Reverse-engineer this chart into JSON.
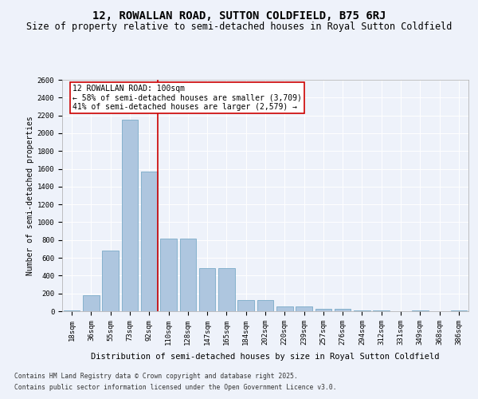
{
  "title": "12, ROWALLAN ROAD, SUTTON COLDFIELD, B75 6RJ",
  "subtitle": "Size of property relative to semi-detached houses in Royal Sutton Coldfield",
  "xlabel": "Distribution of semi-detached houses by size in Royal Sutton Coldfield",
  "ylabel": "Number of semi-detached properties",
  "categories": [
    "18sqm",
    "36sqm",
    "55sqm",
    "73sqm",
    "92sqm",
    "110sqm",
    "128sqm",
    "147sqm",
    "165sqm",
    "184sqm",
    "202sqm",
    "220sqm",
    "239sqm",
    "257sqm",
    "276sqm",
    "294sqm",
    "312sqm",
    "331sqm",
    "349sqm",
    "368sqm",
    "386sqm"
  ],
  "values": [
    10,
    180,
    680,
    2150,
    1570,
    820,
    820,
    480,
    480,
    130,
    130,
    55,
    55,
    30,
    30,
    10,
    5,
    0,
    5,
    0,
    5
  ],
  "bar_color": "#aec6df",
  "bar_edge_color": "#7aaac8",
  "vline_color": "#cc0000",
  "vline_pos": 4.43,
  "annotation_title": "12 ROWALLAN ROAD: 100sqm",
  "annotation_line1": "← 58% of semi-detached houses are smaller (3,709)",
  "annotation_line2": "41% of semi-detached houses are larger (2,579) →",
  "annotation_box_color": "#cc0000",
  "ylim": [
    0,
    2600
  ],
  "yticks": [
    0,
    200,
    400,
    600,
    800,
    1000,
    1200,
    1400,
    1600,
    1800,
    2000,
    2200,
    2400,
    2600
  ],
  "background_color": "#eef2fa",
  "grid_color": "#ffffff",
  "footnote1": "Contains HM Land Registry data © Crown copyright and database right 2025.",
  "footnote2": "Contains public sector information licensed under the Open Government Licence v3.0.",
  "title_fontsize": 10,
  "subtitle_fontsize": 8.5,
  "xlabel_fontsize": 7.5,
  "ylabel_fontsize": 7,
  "tick_fontsize": 6.5,
  "annotation_fontsize": 7,
  "footnote_fontsize": 5.8
}
